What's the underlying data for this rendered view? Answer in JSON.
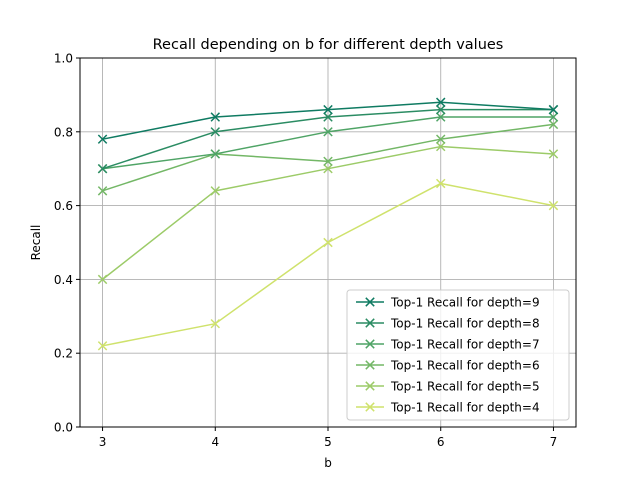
{
  "chart_data": {
    "type": "line",
    "title": "Recall depending on b for different depth values",
    "xlabel": "b",
    "ylabel": "Recall",
    "x": [
      3,
      4,
      5,
      6,
      7
    ],
    "xlim": [
      2.8,
      7.2
    ],
    "ylim": [
      0.0,
      1.0
    ],
    "xticks": [
      "3",
      "4",
      "5",
      "6",
      "7"
    ],
    "yticks": [
      "0.0",
      "0.2",
      "0.4",
      "0.6",
      "0.8",
      "1.0"
    ],
    "grid": true,
    "legend_position": "lower-right",
    "marker": "x",
    "series": [
      {
        "name": "Top-1 Recall for depth=9",
        "color": "#0f7b62",
        "values": [
          0.78,
          0.84,
          0.86,
          0.88,
          0.86
        ]
      },
      {
        "name": "Top-1 Recall for depth=8",
        "color": "#2b8c63",
        "values": [
          0.7,
          0.8,
          0.84,
          0.86,
          0.86
        ]
      },
      {
        "name": "Top-1 Recall for depth=7",
        "color": "#4fa466",
        "values": [
          0.7,
          0.74,
          0.8,
          0.84,
          0.84
        ]
      },
      {
        "name": "Top-1 Recall for depth=6",
        "color": "#73b766",
        "values": [
          0.64,
          0.74,
          0.72,
          0.78,
          0.82
        ]
      },
      {
        "name": "Top-1 Recall for depth=5",
        "color": "#9ccb68",
        "values": [
          0.4,
          0.64,
          0.7,
          0.76,
          0.74
        ]
      },
      {
        "name": "Top-1 Recall for depth=4",
        "color": "#cfe26c",
        "values": [
          0.22,
          0.28,
          0.5,
          0.66,
          0.6
        ]
      }
    ]
  }
}
